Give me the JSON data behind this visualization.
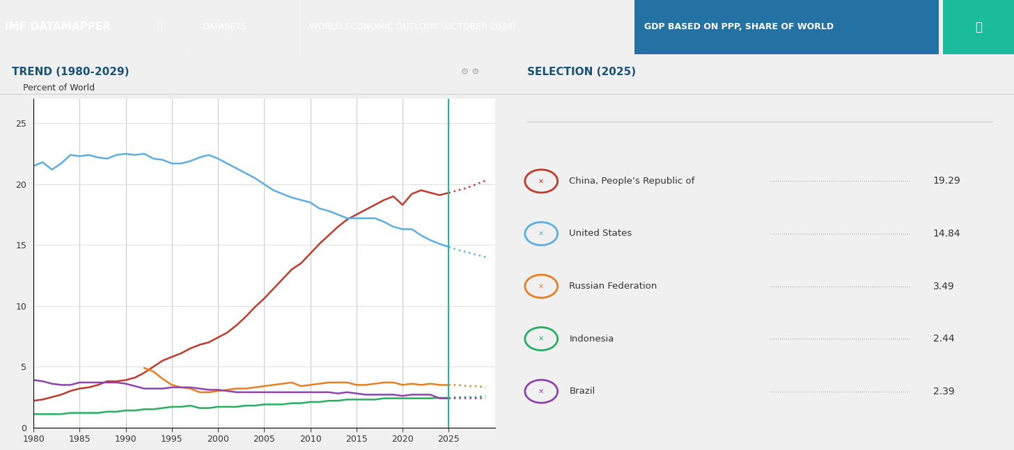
{
  "header_bg": "#1a5276",
  "header_text": "IMF DATAMAPPER",
  "datasets_text": "DATASETS",
  "weo_text": "WORLD ECONOMIC OUTLOOK (OCTOBER 2024)",
  "gdp_text": "GDP BASED ON PPP, SHARE OF WORLD",
  "trend_title": "TREND (1980-2029)",
  "selection_title": "SELECTION (2025)",
  "ylabel": "Percent of World",
  "bg_color": "#f8f8f8",
  "chart_bg": "#ffffff",
  "teal_header": "#1abc9c",
  "selection_year": 2025,
  "ylim": [
    0,
    27
  ],
  "yticks": [
    0,
    5,
    10,
    15,
    20,
    25
  ],
  "xmin": 1980,
  "xmax": 2030,
  "xticks": [
    1980,
    1985,
    1990,
    1995,
    2000,
    2005,
    2010,
    2015,
    2020,
    2025
  ],
  "vertical_lines": [
    1980,
    1985,
    1990,
    1995,
    2000,
    2005,
    2010,
    2015,
    2020,
    2025
  ],
  "series": {
    "China": {
      "color": "#c0392b",
      "values_x": [
        1980,
        1981,
        1982,
        1983,
        1984,
        1985,
        1986,
        1987,
        1988,
        1989,
        1990,
        1991,
        1992,
        1993,
        1994,
        1995,
        1996,
        1997,
        1998,
        1999,
        2000,
        2001,
        2002,
        2003,
        2004,
        2005,
        2006,
        2007,
        2008,
        2009,
        2010,
        2011,
        2012,
        2013,
        2014,
        2015,
        2016,
        2017,
        2018,
        2019,
        2020,
        2021,
        2022,
        2023,
        2024,
        2025,
        2026,
        2027,
        2028,
        2029
      ],
      "values_y": [
        2.2,
        2.3,
        2.5,
        2.7,
        3.0,
        3.2,
        3.3,
        3.5,
        3.8,
        3.8,
        3.9,
        4.1,
        4.5,
        5.0,
        5.5,
        5.8,
        6.1,
        6.5,
        6.8,
        7.0,
        7.4,
        7.8,
        8.4,
        9.1,
        9.9,
        10.6,
        11.4,
        12.2,
        13.0,
        13.5,
        14.3,
        15.1,
        15.8,
        16.5,
        17.1,
        17.5,
        17.9,
        18.3,
        18.7,
        19.0,
        18.3,
        19.2,
        19.5,
        19.3,
        19.1,
        19.29,
        19.5,
        19.7,
        20.0,
        20.3
      ],
      "dotted_from": 2025,
      "label": "China, People’s Republic of",
      "value_2025": 19.29
    },
    "US": {
      "color": "#5dade2",
      "values_x": [
        1980,
        1981,
        1982,
        1983,
        1984,
        1985,
        1986,
        1987,
        1988,
        1989,
        1990,
        1991,
        1992,
        1993,
        1994,
        1995,
        1996,
        1997,
        1998,
        1999,
        2000,
        2001,
        2002,
        2003,
        2004,
        2005,
        2006,
        2007,
        2008,
        2009,
        2010,
        2011,
        2012,
        2013,
        2014,
        2015,
        2016,
        2017,
        2018,
        2019,
        2020,
        2021,
        2022,
        2023,
        2024,
        2025,
        2026,
        2027,
        2028,
        2029
      ],
      "values_y": [
        21.5,
        21.8,
        21.2,
        21.7,
        22.4,
        22.3,
        22.4,
        22.2,
        22.1,
        22.4,
        22.5,
        22.4,
        22.5,
        22.1,
        22.0,
        21.7,
        21.7,
        21.9,
        22.2,
        22.4,
        22.1,
        21.7,
        21.3,
        20.9,
        20.5,
        20.0,
        19.5,
        19.2,
        18.9,
        18.7,
        18.5,
        18.0,
        17.8,
        17.5,
        17.2,
        17.2,
        17.2,
        17.2,
        16.9,
        16.5,
        16.3,
        16.3,
        15.8,
        15.4,
        15.1,
        14.84,
        14.6,
        14.4,
        14.2,
        14.0
      ],
      "dotted_from": 2025,
      "label": "United States",
      "value_2025": 14.84
    },
    "Russia": {
      "color": "#e67e22",
      "values_x": [
        1980,
        1981,
        1982,
        1983,
        1984,
        1985,
        1986,
        1987,
        1988,
        1989,
        1990,
        1991,
        1992,
        1993,
        1994,
        1995,
        1996,
        1997,
        1998,
        1999,
        2000,
        2001,
        2002,
        2003,
        2004,
        2005,
        2006,
        2007,
        2008,
        2009,
        2010,
        2011,
        2012,
        2013,
        2014,
        2015,
        2016,
        2017,
        2018,
        2019,
        2020,
        2021,
        2022,
        2023,
        2024,
        2025,
        2026,
        2027,
        2028,
        2029
      ],
      "values_y": [
        null,
        null,
        null,
        null,
        null,
        null,
        null,
        null,
        null,
        null,
        null,
        null,
        4.9,
        4.6,
        4.0,
        3.5,
        3.3,
        3.2,
        2.9,
        2.9,
        3.0,
        3.1,
        3.2,
        3.2,
        3.3,
        3.4,
        3.5,
        3.6,
        3.7,
        3.4,
        3.5,
        3.6,
        3.7,
        3.7,
        3.7,
        3.5,
        3.5,
        3.6,
        3.7,
        3.7,
        3.5,
        3.6,
        3.5,
        3.6,
        3.5,
        3.49,
        3.5,
        3.4,
        3.4,
        3.3
      ],
      "dotted_from": 2025,
      "label": "Russian Federation",
      "value_2025": 3.49
    },
    "Indonesia": {
      "color": "#27ae60",
      "values_x": [
        1980,
        1981,
        1982,
        1983,
        1984,
        1985,
        1986,
        1987,
        1988,
        1989,
        1990,
        1991,
        1992,
        1993,
        1994,
        1995,
        1996,
        1997,
        1998,
        1999,
        2000,
        2001,
        2002,
        2003,
        2004,
        2005,
        2006,
        2007,
        2008,
        2009,
        2010,
        2011,
        2012,
        2013,
        2014,
        2015,
        2016,
        2017,
        2018,
        2019,
        2020,
        2021,
        2022,
        2023,
        2024,
        2025,
        2026,
        2027,
        2028,
        2029
      ],
      "values_y": [
        1.1,
        1.1,
        1.1,
        1.1,
        1.2,
        1.2,
        1.2,
        1.2,
        1.3,
        1.3,
        1.4,
        1.4,
        1.5,
        1.5,
        1.6,
        1.7,
        1.7,
        1.8,
        1.6,
        1.6,
        1.7,
        1.7,
        1.7,
        1.8,
        1.8,
        1.9,
        1.9,
        1.9,
        2.0,
        2.0,
        2.1,
        2.1,
        2.2,
        2.2,
        2.3,
        2.3,
        2.3,
        2.3,
        2.4,
        2.4,
        2.4,
        2.4,
        2.4,
        2.4,
        2.44,
        2.44,
        2.5,
        2.5,
        2.5,
        2.6
      ],
      "dotted_from": 2025,
      "label": "Indonesia",
      "value_2025": 2.44
    },
    "Brazil": {
      "color": "#8e44ad",
      "values_x": [
        1980,
        1981,
        1982,
        1983,
        1984,
        1985,
        1986,
        1987,
        1988,
        1989,
        1990,
        1991,
        1992,
        1993,
        1994,
        1995,
        1996,
        1997,
        1998,
        1999,
        2000,
        2001,
        2002,
        2003,
        2004,
        2005,
        2006,
        2007,
        2008,
        2009,
        2010,
        2011,
        2012,
        2013,
        2014,
        2015,
        2016,
        2017,
        2018,
        2019,
        2020,
        2021,
        2022,
        2023,
        2024,
        2025,
        2026,
        2027,
        2028,
        2029
      ],
      "values_y": [
        3.9,
        3.8,
        3.6,
        3.5,
        3.5,
        3.7,
        3.7,
        3.7,
        3.7,
        3.7,
        3.6,
        3.4,
        3.2,
        3.2,
        3.2,
        3.3,
        3.3,
        3.3,
        3.2,
        3.1,
        3.1,
        3.0,
        2.9,
        2.9,
        2.9,
        2.9,
        2.9,
        2.9,
        2.9,
        2.9,
        2.9,
        2.9,
        2.9,
        2.8,
        2.9,
        2.8,
        2.7,
        2.7,
        2.7,
        2.7,
        2.6,
        2.7,
        2.7,
        2.7,
        2.4,
        2.39,
        2.4,
        2.4,
        2.4,
        2.4
      ],
      "dotted_from": 2025,
      "label": "Brazil",
      "value_2025": 2.39
    }
  },
  "legend_entries": [
    {
      "label": "China, People’s Republic of",
      "color": "#c0392b",
      "value": "19.29"
    },
    {
      "label": "United States",
      "color": "#5dade2",
      "value": "14.84"
    },
    {
      "label": "Russian Federation",
      "color": "#e67e22",
      "value": "3.49"
    },
    {
      "label": "Indonesia",
      "color": "#27ae60",
      "value": "2.44"
    },
    {
      "label": "Brazil",
      "color": "#8e44ad",
      "value": "2.39"
    }
  ]
}
